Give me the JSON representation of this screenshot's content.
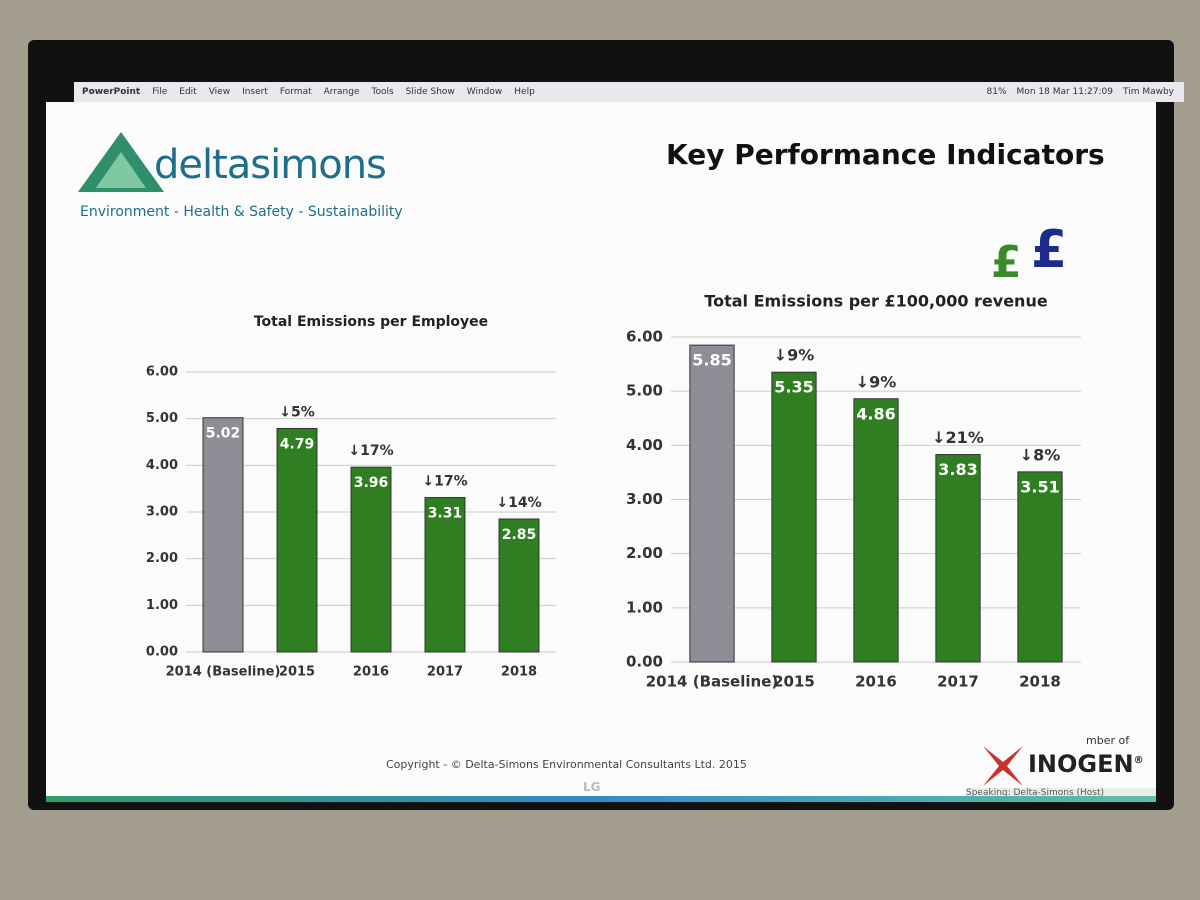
{
  "menu_bar": {
    "items": [
      "PowerPoint",
      "File",
      "Edit",
      "View",
      "Insert",
      "Format",
      "Arrange",
      "Tools",
      "Slide Show",
      "Window",
      "Help"
    ],
    "battery": "81%",
    "clock": "Mon 18 Mar  11:27:09",
    "user": "Tim Mawby"
  },
  "slide": {
    "logo_text": "deltasimons",
    "tagline": "Environment - Health & Safety - Sustainability",
    "title": "Key Performance Indicators",
    "pound_icons": [
      "£",
      "£"
    ],
    "copyright": "Copyright - © Delta-Simons Environmental Consultants Ltd. 2015",
    "member_of": "mber of",
    "partner_logo": "INOGEN",
    "registered": "®"
  },
  "status_bar": "Speaking: Delta-Simons (Host)",
  "tv_brand": "LG",
  "chart_data": [
    {
      "type": "bar",
      "title": "Total Emissions per Employee",
      "categories": [
        "2014 (Baseline)",
        "2015",
        "2016",
        "2017",
        "2018"
      ],
      "values": [
        5.02,
        4.79,
        3.96,
        3.31,
        2.85
      ],
      "annotations": [
        null,
        "↓5%",
        "↓17%",
        "↓17%",
        "↓14%"
      ],
      "colors": [
        "#8e8e96",
        "#2f7f22",
        "#2f7f22",
        "#2f7f22",
        "#2f7f22"
      ],
      "ylim": [
        0,
        6
      ],
      "yticks": [
        {
          "value": 0,
          "label": "0.00"
        },
        {
          "value": 1,
          "label": "1.00"
        },
        {
          "value": 2,
          "label": "2.00"
        },
        {
          "value": 3,
          "label": "3.00"
        },
        {
          "value": 4,
          "label": "4.00"
        },
        {
          "value": 5,
          "label": "5.00"
        },
        {
          "value": 6,
          "label": "6.00"
        }
      ],
      "grid": true
    },
    {
      "type": "bar",
      "title": "Total Emissions per £100,000 revenue",
      "categories": [
        "2014 (Baseline)",
        "2015",
        "2016",
        "2017",
        "2018"
      ],
      "values": [
        5.85,
        5.35,
        4.86,
        3.83,
        3.51
      ],
      "annotations": [
        null,
        "↓9%",
        "↓9%",
        "↓21%",
        "↓8%"
      ],
      "colors": [
        "#8e8e96",
        "#2f7f22",
        "#2f7f22",
        "#2f7f22",
        "#2f7f22"
      ],
      "ylim": [
        0,
        6
      ],
      "yticks": [
        {
          "value": 0,
          "label": "0.00"
        },
        {
          "value": 1,
          "label": "1.00"
        },
        {
          "value": 2,
          "label": "2.00"
        },
        {
          "value": 3,
          "label": "3.00"
        },
        {
          "value": 4,
          "label": "4.00"
        },
        {
          "value": 5,
          "label": "5.00"
        },
        {
          "value": 6,
          "label": "6.00"
        }
      ],
      "grid": true
    }
  ]
}
